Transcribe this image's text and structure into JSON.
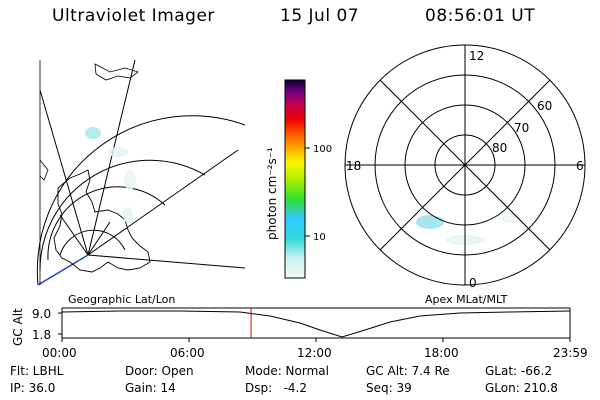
{
  "header": {
    "instrument": "Ultraviolet Imager",
    "date": "15 Jul 07",
    "time": "08:56:01 UT"
  },
  "colorbar": {
    "unit_label": "photon cm⁻²s⁻¹",
    "ticks": [
      "100",
      "10"
    ]
  },
  "polar_plot": {
    "mlt_labels": {
      "top": "12",
      "left": "18",
      "right": "6",
      "bottom": "0"
    },
    "lat_labels": [
      "60",
      "70",
      "80"
    ]
  },
  "map_labels": {
    "left": "Geographic Lat/Lon",
    "right": "Apex MLat/MLT"
  },
  "timeline": {
    "ylabel": "GC Alt",
    "y_ticks": [
      "9.0",
      "1.8"
    ],
    "x_ticks": [
      "00:00",
      "06:00",
      "12:00",
      "18:00",
      "23:59"
    ],
    "marker_time_label": "08:56:01 UT",
    "marker_fraction": 0.3722,
    "marker_color": "#e00000"
  },
  "info": {
    "filter": "Flt: LBHL",
    "ip": "IP: 36.0",
    "door": "Door: Open",
    "gain": "Gain: 14",
    "mode": "Mode: Normal",
    "dsp": "Dsp:   -4.2",
    "gc_alt": "GC Alt: 7.4 Re",
    "seq": "Seq: 39",
    "glat": "GLat: -66.2",
    "glon": "GLon: 210.8"
  }
}
